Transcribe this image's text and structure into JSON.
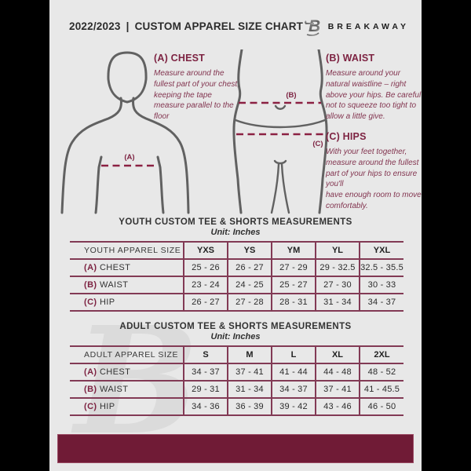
{
  "header": {
    "year": "2022/2023",
    "separator": "|",
    "title": "CUSTOM APPAREL SIZE CHART",
    "brand": "BREAKAWAY"
  },
  "colors": {
    "maroon": "#7d2342",
    "footer_bar": "#701b36",
    "page_background": "#e8e8e8",
    "frame": "#000000"
  },
  "instructions": {
    "chest": {
      "heading": "(A) CHEST",
      "body": "Measure around the fullest part of your chest, keeping the tape measure parallel to the floor"
    },
    "waist": {
      "heading": "(B) WAIST",
      "body": "Measure around your natural waistline – right above your hips. Be careful not to squeeze too tight to allow a little give."
    },
    "hips": {
      "heading": "(C) HIPS",
      "body": "With your feet together, measure around the fullest part of your hips to ensure you'll\nhave enough room to move comfortably."
    }
  },
  "diagram": {
    "chest_marker": "(A)",
    "waist_marker": "(B)",
    "hips_marker": "(C)"
  },
  "youth_table": {
    "title": "YOUTH CUSTOM TEE & SHORTS MEASUREMENTS",
    "unit": "Unit: Inches",
    "header": [
      "YOUTH APPAREL SIZE",
      "YXS",
      "YS",
      "YM",
      "YL",
      "YXL"
    ],
    "rows": [
      {
        "prefix": "(A)",
        "label": "CHEST",
        "values": [
          "25 - 26",
          "26 - 27",
          "27 - 29",
          "29 - 32.5",
          "32.5 - 35.5"
        ]
      },
      {
        "prefix": "(B)",
        "label": "WAIST",
        "values": [
          "23 - 24",
          "24 - 25",
          "25 - 27",
          "27 - 30",
          "30 - 33"
        ]
      },
      {
        "prefix": "(C)",
        "label": "HIP",
        "values": [
          "26 - 27",
          "27 - 28",
          "28 - 31",
          "31 - 34",
          "34 - 37"
        ]
      }
    ]
  },
  "adult_table": {
    "title": "ADULT CUSTOM TEE & SHORTS MEASUREMENTS",
    "unit": "Unit: Inches",
    "header": [
      "ADULT APPAREL SIZE",
      "S",
      "M",
      "L",
      "XL",
      "2XL"
    ],
    "rows": [
      {
        "prefix": "(A)",
        "label": "CHEST",
        "values": [
          "34 - 37",
          "37 - 41",
          "41 - 44",
          "44 - 48",
          "48 - 52"
        ]
      },
      {
        "prefix": "(B)",
        "label": "WAIST",
        "values": [
          "29 - 31",
          "31 - 34",
          "34 - 37",
          "37 - 41",
          "41 - 45.5"
        ]
      },
      {
        "prefix": "(C)",
        "label": "HIP",
        "values": [
          "34 - 36",
          "36 - 39",
          "39 - 42",
          "43 - 46",
          "46 - 50"
        ]
      }
    ]
  },
  "watermark": {
    "glyph": "B"
  }
}
